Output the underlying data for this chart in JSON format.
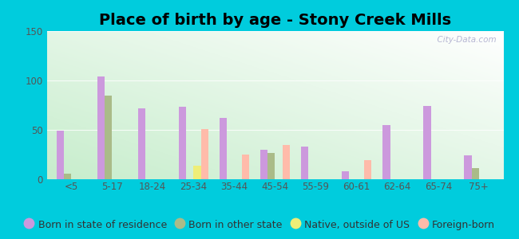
{
  "title": "Place of birth by age - Stony Creek Mills",
  "categories": [
    "<5",
    "5-17",
    "18-24",
    "25-34",
    "35-44",
    "45-54",
    "55-59",
    "60-61",
    "62-64",
    "65-74",
    "75+"
  ],
  "series": {
    "Born in state of residence": [
      49,
      104,
      72,
      73,
      62,
      30,
      33,
      8,
      55,
      74,
      24
    ],
    "Born in other state": [
      6,
      85,
      0,
      0,
      0,
      27,
      0,
      0,
      0,
      0,
      11
    ],
    "Native, outside of US": [
      0,
      0,
      0,
      14,
      0,
      0,
      0,
      0,
      0,
      0,
      0
    ],
    "Foreign-born": [
      0,
      0,
      0,
      51,
      25,
      35,
      0,
      19,
      0,
      0,
      0
    ]
  },
  "colors": {
    "Born in state of residence": "#cc99dd",
    "Born in other state": "#aabb88",
    "Native, outside of US": "#eeee77",
    "Foreign-born": "#ffbbaa"
  },
  "ylim": [
    0,
    150
  ],
  "yticks": [
    0,
    50,
    100,
    150
  ],
  "bar_width": 0.18,
  "outer_bg": "#00ccdd",
  "watermark": "  City-Data.com",
  "title_fontsize": 14,
  "legend_fontsize": 9,
  "tick_fontsize": 8.5
}
